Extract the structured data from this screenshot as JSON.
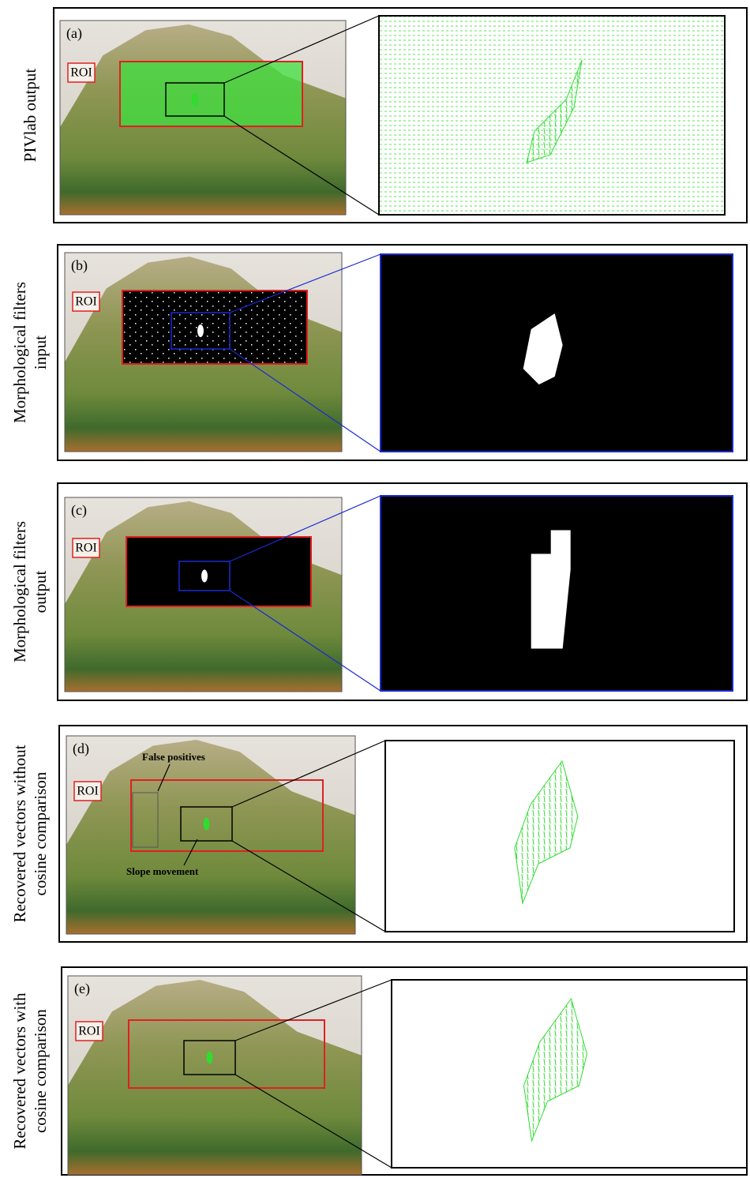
{
  "panels": [
    {
      "label": "(a)",
      "side_label": [
        "PIVlab output"
      ],
      "roi": "ROI"
    },
    {
      "label": "(b)",
      "side_label": [
        "Morphological filters",
        "input"
      ],
      "roi": "ROI"
    },
    {
      "label": "(c)",
      "side_label": [
        "Morphological filters",
        "output"
      ],
      "roi": "ROI"
    },
    {
      "label": "(d)",
      "side_label": [
        "Recovered vectors without",
        "cosine comparison"
      ],
      "roi": "ROI",
      "annotations": [
        "False positives",
        "Slope movement"
      ]
    },
    {
      "label": "(e)",
      "side_label": [
        "Recovered vectors with",
        "cosine comparison"
      ],
      "roi": "ROI"
    }
  ]
}
